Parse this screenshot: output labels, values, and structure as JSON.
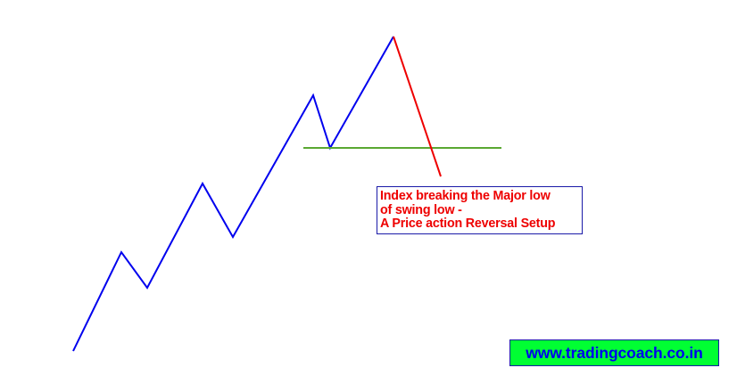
{
  "annotation": {
    "lines": [
      "Index breaking the Major low",
      "of swing low -",
      "A Price action Reversal Setup"
    ]
  },
  "website": {
    "label": "www.tradingcoach.co.in"
  },
  "colors": {
    "uptrend_line": "#0000ee",
    "reversal_line": "#ee0000",
    "support_level": "#5aa832",
    "annotation_text": "#ee0000",
    "annotation_border": "#1a1aa8",
    "website_text": "#0000ee",
    "website_background": "#00ff33"
  }
}
